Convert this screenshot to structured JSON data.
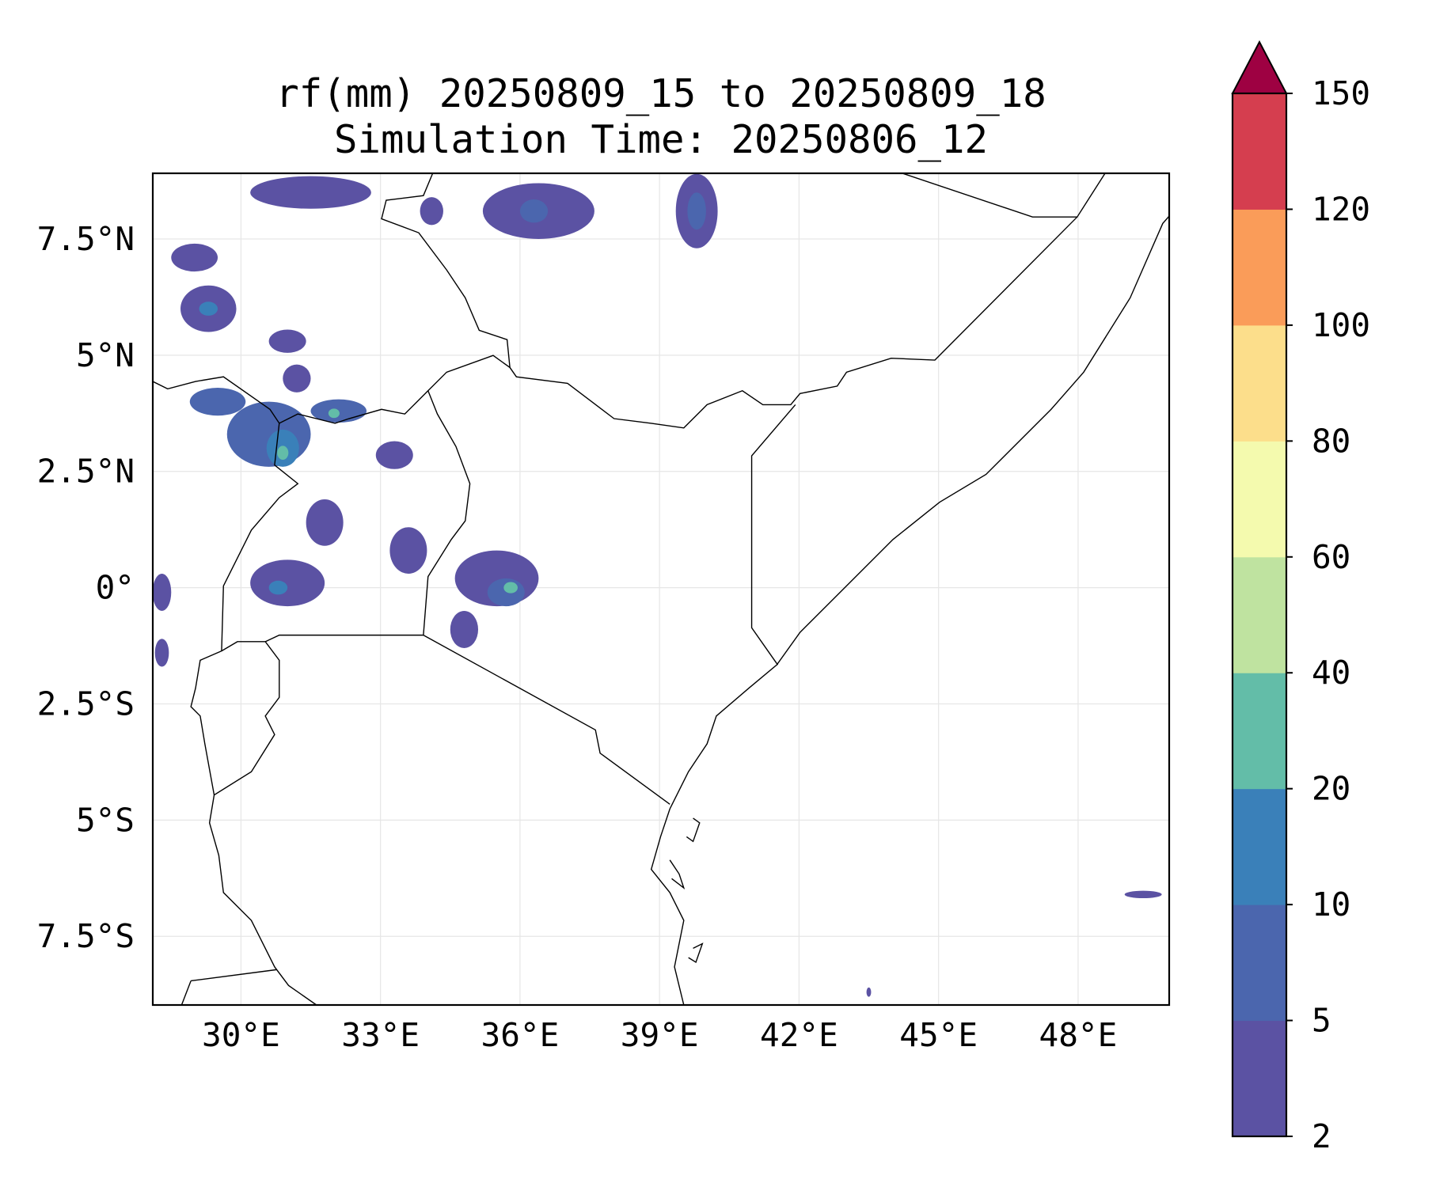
{
  "title": {
    "line1": "rf(mm) 20250809_15 to 20250809_18",
    "line2": "Simulation Time: 20250806_12"
  },
  "map": {
    "lon_range": [
      28.1,
      49.86
    ],
    "lat_range": [
      -8.98,
      8.92
    ],
    "lon_ticks": [
      30,
      33,
      36,
      39,
      42,
      45,
      48
    ],
    "lon_tick_labels": [
      "30°E",
      "33°E",
      "36°E",
      "39°E",
      "42°E",
      "45°E",
      "48°E"
    ],
    "lat_ticks": [
      7.5,
      5,
      2.5,
      0,
      -2.5,
      -5,
      -7.5
    ],
    "lat_tick_labels": [
      "7.5°N",
      "5°N",
      "2.5°N",
      "0°",
      "2.5°S",
      "5°S",
      "7.5°S"
    ],
    "gridlines": true
  },
  "colorbar": {
    "levels": [
      2,
      5,
      10,
      20,
      40,
      60,
      80,
      100,
      120,
      150
    ],
    "tick_labels": [
      "2",
      "5",
      "10",
      "20",
      "40",
      "60",
      "80",
      "100",
      "120",
      "150"
    ],
    "colors": [
      "#5b52a3",
      "#4b66ae",
      "#3a80b9",
      "#63bda8",
      "#bfe3a0",
      "#f4faae",
      "#fcde8b",
      "#fa9c59",
      "#d53e4f"
    ],
    "extend_max_color": "#9e0142"
  },
  "chart_data": {
    "type": "heatmap",
    "title": "rf(mm) 20250809_15 to 20250809_18 / Simulation Time: 20250806_12",
    "variable": "rainfall (mm)",
    "rain_cells": [
      {
        "lon": 30.6,
        "lat": 3.3,
        "rx": 0.9,
        "ry": 0.7,
        "level": 1
      },
      {
        "lon": 30.9,
        "lat": 3.0,
        "rx": 0.35,
        "ry": 0.4,
        "level": 2
      },
      {
        "lon": 30.9,
        "lat": 2.9,
        "rx": 0.12,
        "ry": 0.15,
        "level": 3
      },
      {
        "lon": 29.5,
        "lat": 4.0,
        "rx": 0.6,
        "ry": 0.3,
        "level": 1
      },
      {
        "lon": 32.1,
        "lat": 3.8,
        "rx": 0.6,
        "ry": 0.25,
        "level": 1
      },
      {
        "lon": 32.0,
        "lat": 3.75,
        "rx": 0.12,
        "ry": 0.1,
        "level": 3
      },
      {
        "lon": 33.3,
        "lat": 2.85,
        "rx": 0.4,
        "ry": 0.3,
        "level": 0
      },
      {
        "lon": 31.8,
        "lat": 1.4,
        "rx": 0.4,
        "ry": 0.5,
        "level": 0
      },
      {
        "lon": 31.0,
        "lat": 0.1,
        "rx": 0.8,
        "ry": 0.5,
        "level": 0
      },
      {
        "lon": 30.8,
        "lat": 0.0,
        "rx": 0.2,
        "ry": 0.15,
        "level": 2
      },
      {
        "lon": 35.5,
        "lat": 0.2,
        "rx": 0.9,
        "ry": 0.6,
        "level": 0
      },
      {
        "lon": 35.7,
        "lat": -0.1,
        "rx": 0.4,
        "ry": 0.3,
        "level": 1
      },
      {
        "lon": 35.8,
        "lat": 0.0,
        "rx": 0.15,
        "ry": 0.12,
        "level": 3
      },
      {
        "lon": 33.6,
        "lat": 0.8,
        "rx": 0.4,
        "ry": 0.5,
        "level": 0
      },
      {
        "lon": 29.3,
        "lat": 6.0,
        "rx": 0.6,
        "ry": 0.5,
        "level": 0
      },
      {
        "lon": 29.3,
        "lat": 6.0,
        "rx": 0.2,
        "ry": 0.15,
        "level": 2
      },
      {
        "lon": 31.0,
        "lat": 5.3,
        "rx": 0.4,
        "ry": 0.25,
        "level": 0
      },
      {
        "lon": 31.2,
        "lat": 4.5,
        "rx": 0.3,
        "ry": 0.3,
        "level": 0
      },
      {
        "lon": 29.0,
        "lat": 7.1,
        "rx": 0.5,
        "ry": 0.3,
        "level": 0
      },
      {
        "lon": 31.5,
        "lat": 8.5,
        "rx": 1.3,
        "ry": 0.35,
        "level": 0
      },
      {
        "lon": 36.4,
        "lat": 8.1,
        "rx": 1.2,
        "ry": 0.6,
        "level": 0
      },
      {
        "lon": 36.3,
        "lat": 8.1,
        "rx": 0.3,
        "ry": 0.25,
        "level": 1
      },
      {
        "lon": 39.8,
        "lat": 8.1,
        "rx": 0.45,
        "ry": 0.8,
        "level": 0
      },
      {
        "lon": 39.8,
        "lat": 8.1,
        "rx": 0.2,
        "ry": 0.4,
        "level": 1
      },
      {
        "lon": 34.1,
        "lat": 8.1,
        "rx": 0.25,
        "ry": 0.3,
        "level": 0
      },
      {
        "lon": 28.3,
        "lat": -0.1,
        "rx": 0.2,
        "ry": 0.4,
        "level": 0
      },
      {
        "lon": 28.3,
        "lat": -1.4,
        "rx": 0.15,
        "ry": 0.3,
        "level": 0
      },
      {
        "lon": 34.8,
        "lat": -0.9,
        "rx": 0.3,
        "ry": 0.4,
        "level": 0
      },
      {
        "lon": 49.4,
        "lat": -6.6,
        "rx": 0.4,
        "ry": 0.08,
        "level": 0
      },
      {
        "lon": 43.5,
        "lat": -8.7,
        "rx": 0.05,
        "ry": 0.1,
        "level": 0
      }
    ]
  }
}
